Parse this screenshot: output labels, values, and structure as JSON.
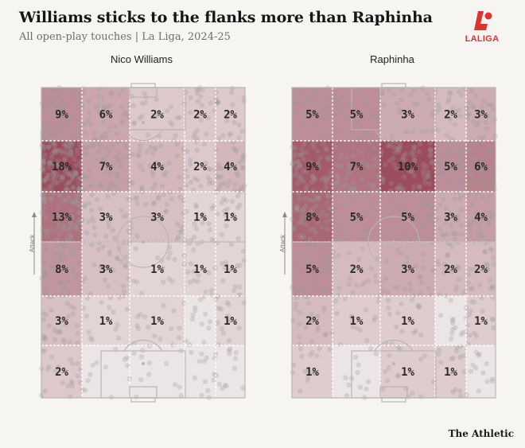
{
  "title": "Williams sticks to the flanks more than Raphinha",
  "subtitle": "All open-play touches | La Liga, 2024-25",
  "logo_text": "LALIGA",
  "credit": "The Athletic",
  "attack_label": "Attack",
  "colors": {
    "heat": "#8c2f42",
    "pitch_line": "#b9b5b2",
    "dot": "#9b9b9b",
    "logo": "#e0332e"
  },
  "chart_data": [
    {
      "type": "heatmap",
      "player": "Nico Williams",
      "rows": 6,
      "cols": 5,
      "values": [
        [
          9,
          6,
          2,
          2,
          2
        ],
        [
          18,
          7,
          4,
          2,
          4
        ],
        [
          13,
          3,
          3,
          1,
          1
        ],
        [
          8,
          3,
          1,
          1,
          1
        ],
        [
          3,
          1,
          1,
          null,
          1
        ],
        [
          2,
          null,
          null,
          null,
          null
        ]
      ],
      "labels": [
        [
          "9%",
          "6%",
          "2%",
          "2%",
          "2%"
        ],
        [
          "18%",
          "7%",
          "4%",
          "2%",
          "4%"
        ],
        [
          "13%",
          "3%",
          "3%",
          "1%",
          "1%"
        ],
        [
          "8%",
          "3%",
          "1%",
          "1%",
          "1%"
        ],
        [
          "3%",
          "1%",
          "1%",
          "",
          "1%"
        ],
        [
          "2%",
          "",
          "",
          "",
          ""
        ]
      ]
    },
    {
      "type": "heatmap",
      "player": "Raphinha",
      "rows": 6,
      "cols": 5,
      "values": [
        [
          5,
          5,
          3,
          2,
          3
        ],
        [
          9,
          7,
          10,
          5,
          6
        ],
        [
          8,
          5,
          5,
          3,
          4
        ],
        [
          5,
          2,
          3,
          2,
          2
        ],
        [
          2,
          1,
          1,
          null,
          1
        ],
        [
          1,
          null,
          1,
          1,
          null
        ]
      ],
      "labels": [
        [
          "5%",
          "5%",
          "3%",
          "2%",
          "3%"
        ],
        [
          "9%",
          "7%",
          "10%",
          "5%",
          "6%"
        ],
        [
          "8%",
          "5%",
          "5%",
          "3%",
          "4%"
        ],
        [
          "5%",
          "2%",
          "3%",
          "2%",
          "2%"
        ],
        [
          "2%",
          "1%",
          "1%",
          "",
          "1%"
        ],
        [
          "1%",
          "",
          "1%",
          "1%",
          ""
        ]
      ]
    }
  ]
}
